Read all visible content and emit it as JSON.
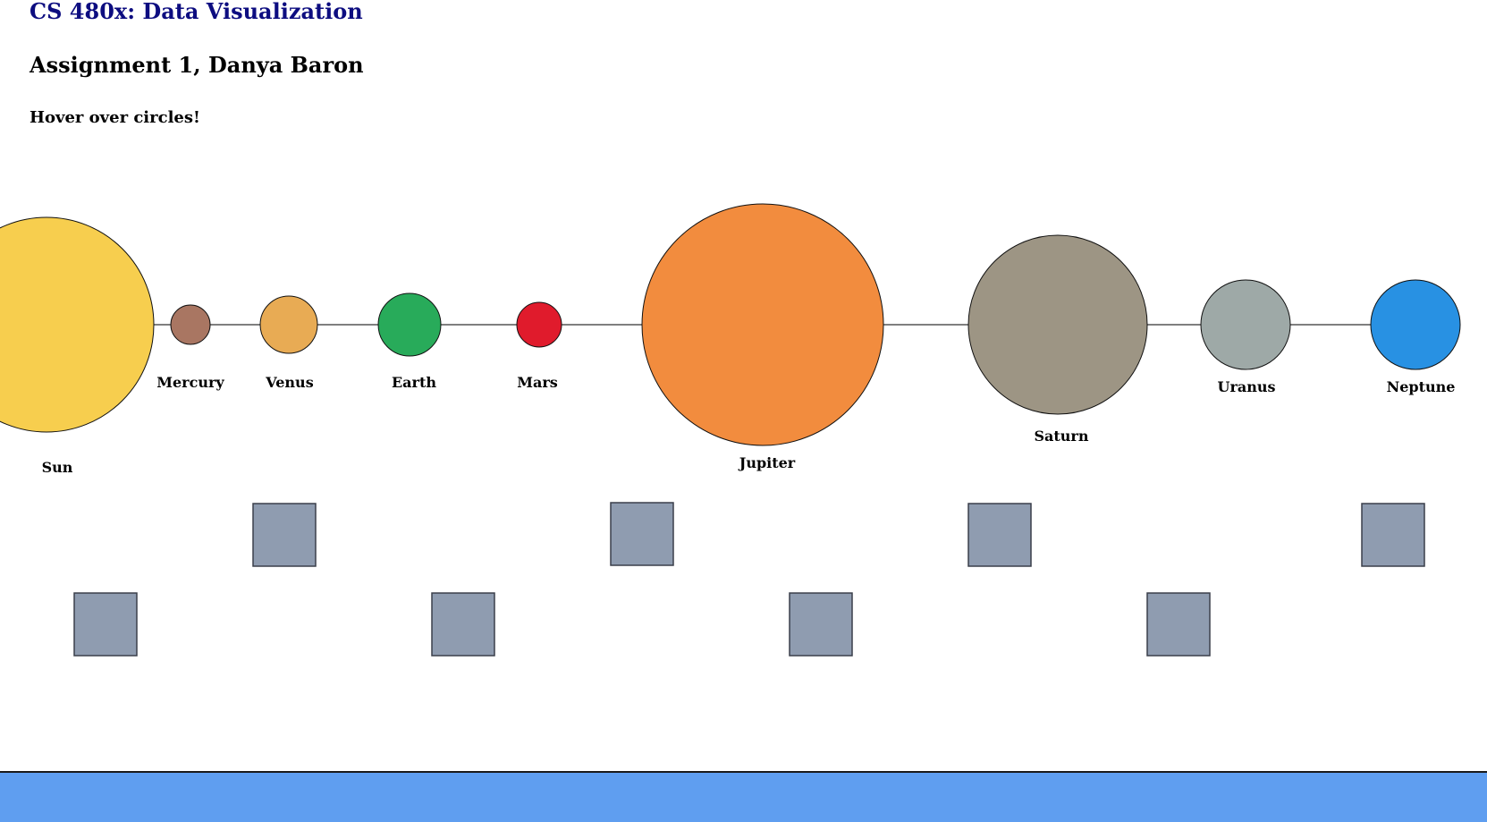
{
  "header": {
    "course_title": "CS 480x: Data Visualization",
    "assignment_title": "Assignment 1, Danya Baron",
    "instruction": "Hover over circles!"
  },
  "planets": [
    {
      "name": "Sun",
      "color": "#f7ce4e"
    },
    {
      "name": "Mercury",
      "color": "#a97662"
    },
    {
      "name": "Venus",
      "color": "#e8ab54"
    },
    {
      "name": "Earth",
      "color": "#28ab5a"
    },
    {
      "name": "Mars",
      "color": "#e01b2c"
    },
    {
      "name": "Jupiter",
      "color": "#f28c3e"
    },
    {
      "name": "Saturn",
      "color": "#9d9584"
    },
    {
      "name": "Uranus",
      "color": "#9ea9a7"
    },
    {
      "name": "Neptune",
      "color": "#2891e3"
    }
  ],
  "colors": {
    "square_fill": "#8f9cb0",
    "square_stroke": "#3a3f4a",
    "orbit_line": "#555555",
    "footer": "#5f9ef0",
    "course_title": "#0d0d80"
  }
}
